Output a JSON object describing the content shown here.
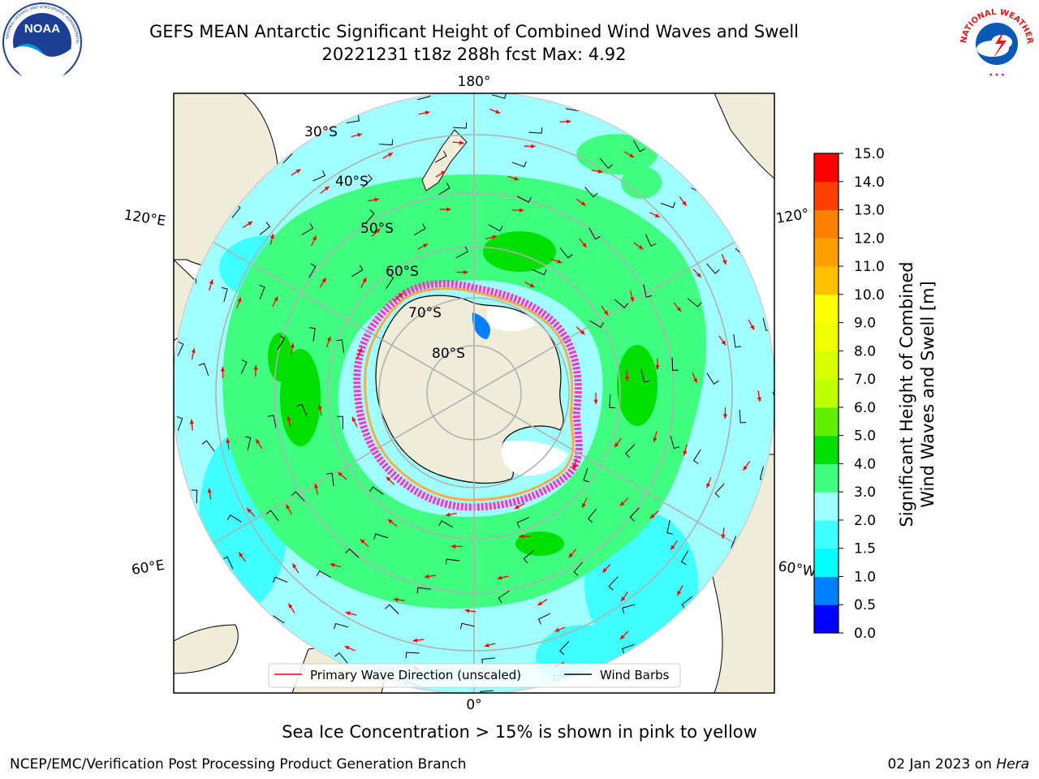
{
  "header": {
    "title_line1": "GEFS MEAN Antarctic Significant Height of Combined Wind Waves and Swell",
    "title_line2": "20221231 t18z 288h fcst   Max: 4.92"
  },
  "logos": {
    "left": {
      "name": "NOAA",
      "ring_text": "NATIONAL OCEANIC AND ATMOSPHERIC ADMINISTRATION · U.S. DEPARTMENT OF COMMERCE"
    },
    "right": {
      "name": "NATIONAL WEATHER SERVICE"
    }
  },
  "map": {
    "projection": "south-polar-stereographic",
    "longitude_labels": {
      "top": "180°",
      "bottom": "0°",
      "upper_left": "120°E",
      "lower_left": "60°E",
      "upper_right": "120°",
      "lower_right": "60°W"
    },
    "latitude_labels": [
      "30°S",
      "40°S",
      "50°S",
      "60°S",
      "70°S",
      "80°S"
    ],
    "legend": [
      {
        "label": "Primary Wave Direction (unscaled)",
        "color": "#ff0000"
      },
      {
        "label": "Wind Barbs",
        "color": "#000000"
      }
    ],
    "colors": {
      "land": "#efedd9",
      "ice_pink": "#ff33cc",
      "arrow": "#ff0000",
      "barb": "#000000",
      "grid": "#b0b0b0"
    }
  },
  "colorbar": {
    "title_line1": "Significant Height of Combined",
    "title_line2": "Wind Waves and Swell [m]",
    "ticks": [
      "15.0",
      "14.0",
      "13.0",
      "12.0",
      "11.0",
      "10.0",
      "9.0",
      "8.0",
      "7.0",
      "6.0",
      "5.0",
      "4.0",
      "3.0",
      "2.0",
      "1.5",
      "1.0",
      "0.5",
      "0.0"
    ],
    "levels": [
      {
        "from": 0.0,
        "to": 0.5,
        "color": "#0000ff"
      },
      {
        "from": 0.5,
        "to": 1.0,
        "color": "#0080ff"
      },
      {
        "from": 1.0,
        "to": 1.5,
        "color": "#00ffff"
      },
      {
        "from": 1.5,
        "to": 2.0,
        "color": "#40ffff"
      },
      {
        "from": 2.0,
        "to": 3.0,
        "color": "#a0ffff"
      },
      {
        "from": 3.0,
        "to": 4.0,
        "color": "#40ff80"
      },
      {
        "from": 4.0,
        "to": 5.0,
        "color": "#00e000"
      },
      {
        "from": 5.0,
        "to": 6.0,
        "color": "#60f000"
      },
      {
        "from": 6.0,
        "to": 7.0,
        "color": "#c0ff00"
      },
      {
        "from": 7.0,
        "to": 8.0,
        "color": "#d8ff00"
      },
      {
        "from": 8.0,
        "to": 9.0,
        "color": "#f0ff00"
      },
      {
        "from": 9.0,
        "to": 10.0,
        "color": "#ffff00"
      },
      {
        "from": 10.0,
        "to": 11.0,
        "color": "#ffc000"
      },
      {
        "from": 11.0,
        "to": 12.0,
        "color": "#ffa000"
      },
      {
        "from": 12.0,
        "to": 13.0,
        "color": "#ff8000"
      },
      {
        "from": 13.0,
        "to": 14.0,
        "color": "#ff4000"
      },
      {
        "from": 14.0,
        "to": 15.0,
        "color": "#ff0000"
      }
    ]
  },
  "caption": "Sea Ice Concentration > 15% is shown in pink to yellow",
  "footer": {
    "left": "NCEP/EMC/Verification Post Processing Product Generation Branch",
    "right_date": "02 Jan 2023 on",
    "right_host": "Hera"
  }
}
